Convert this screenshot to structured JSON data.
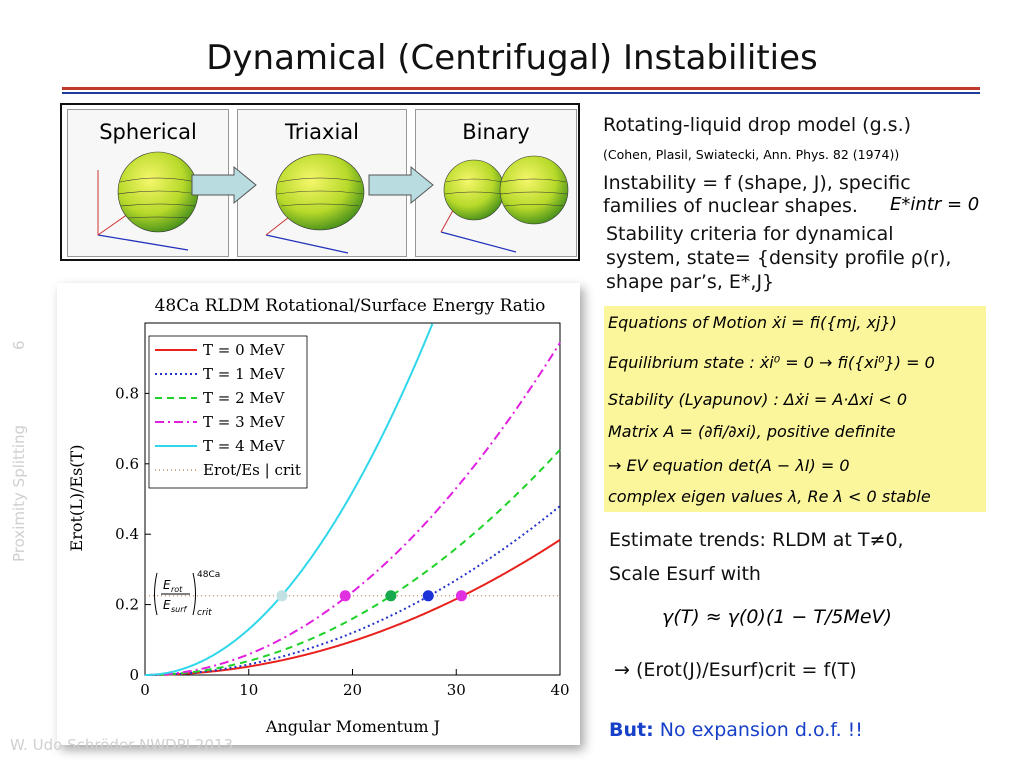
{
  "title": "Dynamical (Centrifugal) Instabilities",
  "shapes": [
    "Spherical",
    "Triaxial",
    "Binary"
  ],
  "side_text": {
    "label": "Proximity Splitting",
    "page": "6"
  },
  "footer": "W. Udo Schröder NWDPI 2013",
  "right": {
    "model": "Rotating-liquid drop model (g.s.)",
    "ref": "(Cohen, Plasil, Swiatecki, Ann. Phys. 82  (1974))",
    "instab_l1": "Instability = f (shape, J), specific",
    "instab_l2": "families of nuclear shapes.",
    "instab_cond": "E*intr = 0",
    "stab_l1": "Stability criteria for dynamical",
    "stab_l2": "system, state= {density profile ρ(r),",
    "stab_l3": "shape par’s, E*,J}",
    "eqs": [
      "Equations of  Motion  ẋi = fi({mj, xj})",
      "Equilibrium state : ẋi⁰ = 0 → fi({xi⁰}) = 0",
      "Stability (Lyapunov) : Δẋi = A·Δxi  < 0",
      "Matrix  A = (∂fi/∂xi), positive definite",
      "→ EV  equation det(A − λI) = 0",
      "complex eigen values λ, Re λ < 0 stable"
    ],
    "estimate_l1": "Estimate trends: RLDM at T≠0,",
    "estimate_l2": "Scale Esurf with",
    "gamma_formula": "γ(T) ≈ γ(0)(1 − T/5MeV)",
    "crit": "→  (Erot(J)/Esurf)crit = f(T)",
    "but_label": "But:",
    "but_text": "No expansion d.o.f. !!"
  },
  "chart_data": {
    "type": "line",
    "title": "48Ca RLDM Rotational/Surface Energy Ratio",
    "xlabel": "Angular Momentum J",
    "ylabel": "Erot(L)/Es(T)",
    "xlim": [
      0,
      40
    ],
    "ylim": [
      0,
      1.0
    ],
    "xticks": [
      0,
      10,
      20,
      30,
      40
    ],
    "yticks": [
      0,
      0.2,
      0.4,
      0.6,
      0.8
    ],
    "legend_position": "top-left",
    "critical_value": 0.225,
    "crit_annotation": "(Erot/Esurf)crit 48Ca",
    "series": [
      {
        "name": "T = 0 MeV",
        "color": "#e8211c",
        "dash": "",
        "coef": 0.00024
      },
      {
        "name": "T = 1 MeV",
        "color": "#2434c9",
        "dash": "2,3",
        "coef": 0.0003
      },
      {
        "name": "T = 2 MeV",
        "color": "#1fd22a",
        "dash": "7,5",
        "coef": 0.0004
      },
      {
        "name": "T = 3 MeV",
        "color": "#e020e0",
        "dash": "9,4,2,4",
        "coef": 0.00059
      },
      {
        "name": "T = 4 MeV",
        "color": "#2fd7ea",
        "dash": "",
        "coef": 0.0013
      },
      {
        "name": "Erot/Es | crit",
        "color": "#b4703a",
        "dash": "1,3",
        "coef": null
      }
    ],
    "crossings": [
      {
        "x": 13.2,
        "y": 0.225,
        "color": "#c3e0e3"
      },
      {
        "x": 19.3,
        "y": 0.225,
        "color": "#e030e0"
      },
      {
        "x": 23.7,
        "y": 0.225,
        "color": "#17a94d"
      },
      {
        "x": 27.3,
        "y": 0.225,
        "color": "#1c33d8"
      },
      {
        "x": 30.5,
        "y": 0.225,
        "color": "#e030e0"
      }
    ]
  }
}
